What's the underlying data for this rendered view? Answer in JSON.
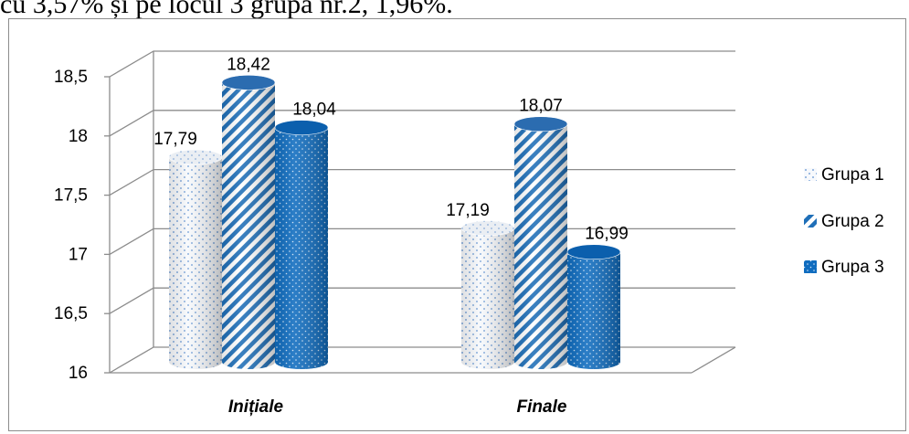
{
  "page": {
    "top_text": "cu 3,57% și pe locul 3 grupa nr.2, 1,96%."
  },
  "chart_data": {
    "type": "bar",
    "categories": [
      "Inițiale",
      "Finale"
    ],
    "series": [
      {
        "name": "Grupa 1",
        "values": [
          17.79,
          17.19
        ],
        "labels": [
          "17,79",
          "17,19"
        ],
        "color": "#dbe6f4",
        "pattern": "dots"
      },
      {
        "name": "Grupa 2",
        "values": [
          18.42,
          18.07
        ],
        "labels": [
          "18,42",
          "18,07"
        ],
        "color": "#1f6fb8",
        "pattern": "diagonal-stripes"
      },
      {
        "name": "Grupa 3",
        "values": [
          18.04,
          16.99
        ],
        "labels": [
          "18,04",
          "16,99"
        ],
        "color": "#0f6cbf",
        "pattern": "dots-on-blue"
      }
    ],
    "y_ticks": [
      "16",
      "16,5",
      "17",
      "17,5",
      "18",
      "18,5"
    ],
    "ylim": [
      16,
      18.5
    ],
    "grid": true,
    "three_d": true,
    "bar_shape": "cylinder",
    "legend_position": "right",
    "title": "",
    "xlabel": "",
    "ylabel": ""
  }
}
